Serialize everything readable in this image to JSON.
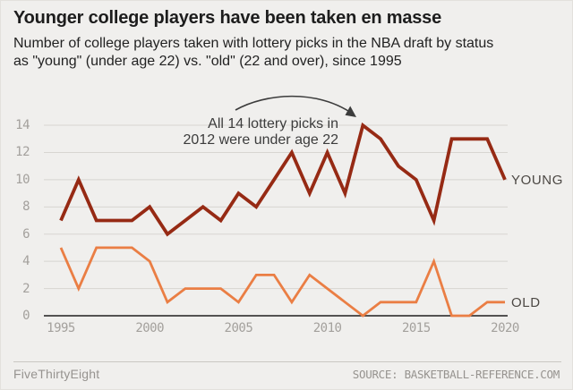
{
  "header": {
    "title": "Younger college players have been taken en masse",
    "subtitle": "Number of college players taken with lottery picks in the NBA draft by status as \"young\" (under age 22) vs. \"old\" (22 and over), since 1995"
  },
  "chart_data": {
    "type": "line",
    "x": [
      1995,
      1996,
      1997,
      1998,
      1999,
      2000,
      2001,
      2002,
      2003,
      2004,
      2005,
      2006,
      2007,
      2008,
      2009,
      2010,
      2011,
      2012,
      2013,
      2014,
      2015,
      2016,
      2017,
      2018,
      2019,
      2020
    ],
    "series": [
      {
        "name": "YOUNG",
        "color": "#962a14",
        "values": [
          7,
          10,
          7,
          7,
          7,
          8,
          6,
          7,
          8,
          7,
          9,
          8,
          10,
          12,
          9,
          12,
          9,
          14,
          13,
          11,
          10,
          7,
          13,
          13,
          13,
          10
        ]
      },
      {
        "name": "OLD",
        "color": "#ea7e44",
        "values": [
          5,
          2,
          5,
          5,
          5,
          4,
          1,
          2,
          2,
          2,
          1,
          3,
          3,
          1,
          3,
          2,
          1,
          0,
          1,
          1,
          1,
          4,
          0,
          0,
          1,
          1
        ]
      }
    ],
    "ylim": [
      0,
      14
    ],
    "yticks": [
      0,
      2,
      4,
      6,
      8,
      10,
      12,
      14
    ],
    "xticks": [
      1995,
      2000,
      2005,
      2010,
      2015,
      2020
    ],
    "grid": true,
    "legend_position": "right-of-line-ends",
    "annotation": {
      "line1": "All 14 lottery picks in",
      "line2": "2012 were under age 22",
      "target_year": 2012,
      "target_value": 14
    },
    "colors": {
      "background": "#f0efed",
      "gridline": "#d7d5d1",
      "zero_axis": "#1f1f1f",
      "tick_text": "#a3a09c",
      "series_label_text": "#4c4844",
      "annotation_text": "#3c3c3c"
    }
  },
  "footer": {
    "brand": "FiveThirtyEight",
    "source": "SOURCE: BASKETBALL-REFERENCE.COM"
  }
}
